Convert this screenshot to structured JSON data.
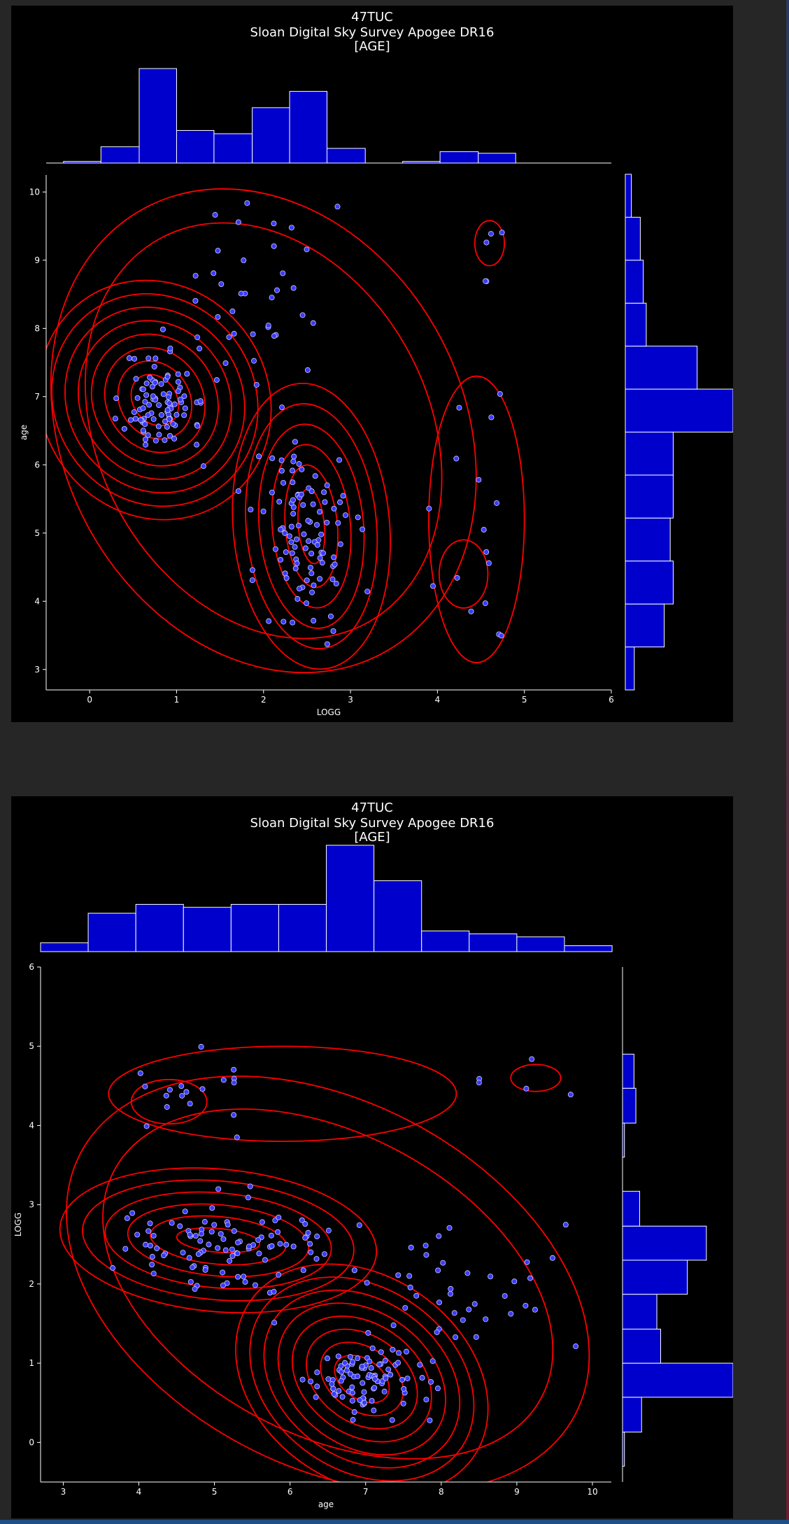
{
  "colors": {
    "background": "#262626",
    "figure": "#000000",
    "bar_fill": "#0000cc",
    "bar_edge": "#ffffff",
    "contour": "#ff0000",
    "point_fill": "#3b3bff",
    "point_edge": "#c8c8ff",
    "text": "#ffffff"
  },
  "chart_data": [
    {
      "type": "scatter",
      "title": "47TUC",
      "subtitle": "Sloan Digital Sky Survey Apogee DR16",
      "subtitle2": "[AGE]",
      "xlabel": "LOGG",
      "ylabel": "age",
      "xlim": [
        -0.5,
        6
      ],
      "ylim": [
        2.7,
        10.25
      ],
      "xticks": [
        0,
        1,
        2,
        3,
        4,
        5,
        6
      ],
      "yticks": [
        3,
        4,
        5,
        6,
        7,
        8,
        9,
        10
      ],
      "grid": false,
      "marginal_x": {
        "bins": [
          -0.3,
          0.13,
          0.57,
          1.0,
          1.43,
          1.87,
          2.3,
          2.73,
          3.17,
          3.6,
          4.03,
          4.47,
          4.9
        ],
        "counts": [
          1,
          10,
          58,
          20,
          18,
          34,
          44,
          9,
          0,
          1,
          7,
          6
        ]
      },
      "marginal_y": {
        "bins": [
          2.7,
          3.33,
          3.96,
          4.59,
          5.22,
          5.85,
          6.48,
          7.11,
          7.74,
          8.37,
          9.0,
          9.63,
          10.26
        ],
        "counts": [
          3,
          13,
          16,
          15,
          16,
          16,
          36,
          24,
          7,
          6,
          5,
          2
        ]
      },
      "clusters": [
        {
          "name": "",
          "cx": 0.8,
          "cy": 6.95,
          "sx": 0.2,
          "sy": 0.38,
          "n": 90
        },
        {
          "name": "",
          "cx": 2.5,
          "cy": 4.95,
          "sx": 0.28,
          "sy": 0.75,
          "n": 100
        },
        {
          "name": "",
          "cx": 1.8,
          "cy": 8.2,
          "sx": 0.45,
          "sy": 0.9,
          "n": 45
        },
        {
          "name": "",
          "cx": 4.4,
          "cy": 5.0,
          "sx": 0.25,
          "sy": 1.4,
          "n": 18
        },
        {
          "name": "",
          "cx": 4.6,
          "cy": 9.3,
          "sx": 0.12,
          "sy": 0.35,
          "n": 5
        }
      ],
      "contours": [
        {
          "cx": 0.75,
          "cy": 6.95,
          "rx": [
            0.25,
            0.4,
            0.55,
            0.7,
            0.85,
            1.0,
            1.15,
            1.3
          ],
          "ry": [
            0.4,
            0.6,
            0.8,
            1.0,
            1.2,
            1.4,
            1.6,
            1.8
          ],
          "rot": -35
        },
        {
          "cx": 2.55,
          "cy": 5.1,
          "rx": [
            0.15,
            0.3,
            0.45,
            0.6,
            0.75,
            0.9
          ],
          "ry": [
            0.55,
            0.9,
            1.2,
            1.5,
            1.8,
            2.1
          ],
          "rot": -5
        },
        {
          "cx": 2.0,
          "cy": 6.5,
          "rx": [
            1.9,
            2.3
          ],
          "ry": [
            3.2,
            3.7
          ],
          "rot": -28
        },
        {
          "cx": 4.3,
          "cy": 4.4,
          "rx": [
            0.28
          ],
          "ry": [
            0.5
          ],
          "rot": 0
        },
        {
          "cx": 4.6,
          "cy": 9.25,
          "rx": [
            0.17
          ],
          "ry": [
            0.33
          ],
          "rot": 0
        },
        {
          "cx": 4.45,
          "cy": 5.2,
          "rx": [
            0.55
          ],
          "ry": [
            2.1
          ],
          "rot": 0
        }
      ]
    },
    {
      "type": "scatter",
      "title": "47TUC",
      "subtitle": "Sloan Digital Sky Survey Apogee DR16",
      "subtitle2": "[AGE]",
      "xlabel": "age",
      "ylabel": "LOGG",
      "xlim": [
        2.7,
        10.25
      ],
      "ylim": [
        -0.5,
        6
      ],
      "xticks": [
        3,
        4,
        5,
        6,
        7,
        8,
        9,
        10
      ],
      "yticks": [
        0,
        1,
        2,
        3,
        4,
        5,
        6
      ],
      "grid": false,
      "marginal_x": {
        "bins": [
          2.7,
          3.33,
          3.96,
          4.59,
          5.22,
          5.85,
          6.48,
          7.11,
          7.74,
          8.37,
          9.0,
          9.63,
          10.26
        ],
        "counts": [
          3,
          13,
          16,
          15,
          16,
          16,
          36,
          24,
          7,
          6,
          5,
          2
        ]
      },
      "marginal_y": {
        "bins": [
          -0.3,
          0.13,
          0.57,
          1.0,
          1.43,
          1.87,
          2.3,
          2.73,
          3.17,
          3.6,
          4.03,
          4.47,
          4.9
        ],
        "counts": [
          1,
          10,
          58,
          20,
          18,
          34,
          44,
          9,
          0,
          1,
          7,
          6
        ]
      },
      "clusters": [
        {
          "name": "",
          "cx": 6.95,
          "cy": 0.8,
          "sx": 0.38,
          "sy": 0.2,
          "n": 90
        },
        {
          "name": "",
          "cx": 4.95,
          "cy": 2.5,
          "sx": 0.75,
          "sy": 0.28,
          "n": 100
        },
        {
          "name": "",
          "cx": 8.2,
          "cy": 1.8,
          "sx": 0.9,
          "sy": 0.45,
          "n": 45
        },
        {
          "name": "",
          "cx": 4.4,
          "cy": 4.35,
          "sx": 0.5,
          "sy": 0.2,
          "n": 18
        },
        {
          "name": "",
          "cx": 9.3,
          "cy": 4.62,
          "sx": 0.35,
          "sy": 0.12,
          "n": 5
        }
      ],
      "contours": [
        {
          "cx": 6.95,
          "cy": 0.8,
          "rx": [
            0.4,
            0.6,
            0.8,
            1.0,
            1.2,
            1.4,
            1.6,
            1.8
          ],
          "ry": [
            0.25,
            0.4,
            0.55,
            0.7,
            0.85,
            1.0,
            1.15,
            1.3
          ],
          "rot": 35
        },
        {
          "cx": 5.05,
          "cy": 2.55,
          "rx": [
            0.55,
            0.9,
            1.2,
            1.5,
            1.8,
            2.1
          ],
          "ry": [
            0.15,
            0.3,
            0.45,
            0.6,
            0.75,
            0.9
          ],
          "rot": 5
        },
        {
          "cx": 6.5,
          "cy": 2.0,
          "rx": [
            3.2,
            3.7
          ],
          "ry": [
            1.9,
            2.3
          ],
          "rot": 28
        },
        {
          "cx": 4.4,
          "cy": 4.3,
          "rx": [
            0.5
          ],
          "ry": [
            0.28
          ],
          "rot": 0
        },
        {
          "cx": 9.25,
          "cy": 4.6,
          "rx": [
            0.33
          ],
          "ry": [
            0.17
          ],
          "rot": 0
        },
        {
          "cx": 5.9,
          "cy": 4.4,
          "rx": [
            2.3
          ],
          "ry": [
            0.6
          ],
          "rot": 0
        }
      ]
    }
  ]
}
